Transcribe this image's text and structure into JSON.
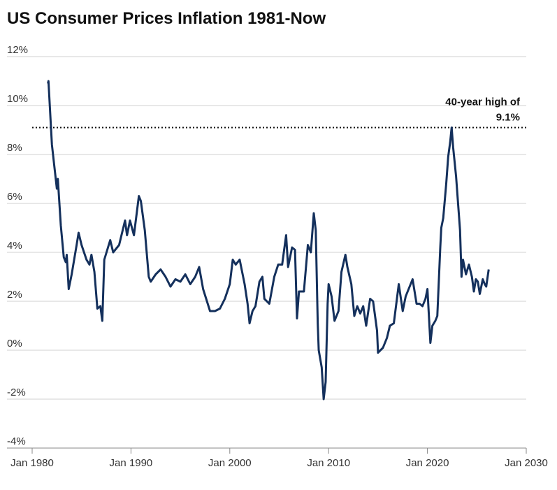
{
  "chart_data": {
    "type": "line",
    "title": "US Consumer Prices Inflation 1981-Now",
    "xlim": [
      1980,
      2030
    ],
    "xticks": [
      {
        "value": 1980,
        "label": "Jan 1980"
      },
      {
        "value": 1990,
        "label": "Jan 1990"
      },
      {
        "value": 2000,
        "label": "Jan 2000"
      },
      {
        "value": 2010,
        "label": "Jan 2010"
      },
      {
        "value": 2020,
        "label": "Jan 2020"
      },
      {
        "value": 2030,
        "label": "Jan 2030"
      }
    ],
    "ylim": [
      -4,
      12
    ],
    "yticks": [
      {
        "value": -4,
        "label": "-4%"
      },
      {
        "value": -2,
        "label": "-2%"
      },
      {
        "value": 0,
        "label": "0%"
      },
      {
        "value": 2,
        "label": "2%"
      },
      {
        "value": 4,
        "label": "4%"
      },
      {
        "value": 6,
        "label": "6%"
      },
      {
        "value": 8,
        "label": "8%"
      },
      {
        "value": 10,
        "label": "10%"
      },
      {
        "value": 12,
        "label": "12%"
      }
    ],
    "grid": true,
    "reference_line": {
      "value": 9.1,
      "label_lines": [
        "40-year high of",
        "9.1%"
      ]
    },
    "series": [
      {
        "color": "#14305c",
        "x": [
          1981.6,
          1981.65,
          1982.0,
          1982.5,
          1982.6,
          1982.9,
          1983.2,
          1983.4,
          1983.5,
          1983.7,
          1984.0,
          1984.5,
          1984.7,
          1985.0,
          1985.5,
          1985.8,
          1986.0,
          1986.3,
          1986.6,
          1986.9,
          1987.1,
          1987.3,
          1987.9,
          1988.2,
          1988.8,
          1989.4,
          1989.6,
          1989.9,
          1990.3,
          1990.8,
          1991.0,
          1991.4,
          1991.8,
          1992.0,
          1992.5,
          1993.0,
          1993.5,
          1994.0,
          1994.5,
          1995.0,
          1995.5,
          1996.0,
          1996.5,
          1996.9,
          1997.3,
          1998.0,
          1998.5,
          1999.0,
          1999.5,
          2000.0,
          2000.3,
          2000.6,
          2001.0,
          2001.5,
          2001.8,
          2002.0,
          2002.3,
          2002.6,
          2003.0,
          2003.3,
          2003.5,
          2004.0,
          2004.5,
          2004.9,
          2005.3,
          2005.7,
          2005.9,
          2006.3,
          2006.6,
          2006.8,
          2007.0,
          2007.5,
          2007.9,
          2008.2,
          2008.5,
          2008.7,
          2008.9,
          2009.0,
          2009.3,
          2009.5,
          2009.7,
          2009.9,
          2010.0,
          2010.3,
          2010.6,
          2011.0,
          2011.3,
          2011.7,
          2011.9,
          2012.3,
          2012.6,
          2012.9,
          2013.2,
          2013.5,
          2013.8,
          2014.2,
          2014.5,
          2014.9,
          2015.0,
          2015.5,
          2015.9,
          2016.2,
          2016.6,
          2017.1,
          2017.5,
          2017.8,
          2018.5,
          2018.9,
          2019.2,
          2019.5,
          2019.8,
          2020.0,
          2020.3,
          2020.5,
          2020.8,
          2021.0,
          2021.3,
          2021.4,
          2021.6,
          2021.9,
          2022.1,
          2022.3,
          2022.45,
          2022.6,
          2022.9,
          2023.1,
          2023.3,
          2023.45,
          2023.6,
          2023.9,
          2024.2,
          2024.5,
          2024.7,
          2024.9,
          2025.1,
          2025.3,
          2025.6,
          2025.8,
          2025.95,
          2026.2
        ],
        "values": [
          10.9,
          11.0,
          8.4,
          6.6,
          7.0,
          5.1,
          3.8,
          3.6,
          3.9,
          2.5,
          3.1,
          4.3,
          4.8,
          4.3,
          3.7,
          3.5,
          3.9,
          3.2,
          1.7,
          1.8,
          1.2,
          3.7,
          4.5,
          4.0,
          4.3,
          5.3,
          4.7,
          5.3,
          4.7,
          6.3,
          6.1,
          4.9,
          3.0,
          2.8,
          3.1,
          3.3,
          3.0,
          2.6,
          2.9,
          2.8,
          3.1,
          2.7,
          3.0,
          3.4,
          2.5,
          1.6,
          1.6,
          1.7,
          2.1,
          2.7,
          3.7,
          3.5,
          3.7,
          2.7,
          1.9,
          1.1,
          1.6,
          1.8,
          2.8,
          3.0,
          2.1,
          1.9,
          3.0,
          3.5,
          3.5,
          4.7,
          3.4,
          4.2,
          4.1,
          1.3,
          2.4,
          2.4,
          4.3,
          4.0,
          5.6,
          4.9,
          1.1,
          0.0,
          -0.7,
          -2.0,
          -1.3,
          1.9,
          2.7,
          2.2,
          1.2,
          1.6,
          3.2,
          3.9,
          3.4,
          2.7,
          1.4,
          1.8,
          1.5,
          1.8,
          1.0,
          2.1,
          2.0,
          0.8,
          -0.1,
          0.1,
          0.5,
          1.0,
          1.1,
          2.7,
          1.6,
          2.2,
          2.9,
          1.9,
          1.9,
          1.8,
          2.1,
          2.5,
          0.3,
          1.0,
          1.2,
          1.4,
          4.2,
          5.0,
          5.4,
          6.8,
          7.9,
          8.5,
          9.1,
          8.3,
          7.1,
          6.0,
          4.9,
          3.0,
          3.7,
          3.1,
          3.5,
          3.0,
          2.4,
          2.9,
          2.8,
          2.3,
          2.9,
          2.7,
          2.6,
          3.3
        ]
      }
    ]
  }
}
